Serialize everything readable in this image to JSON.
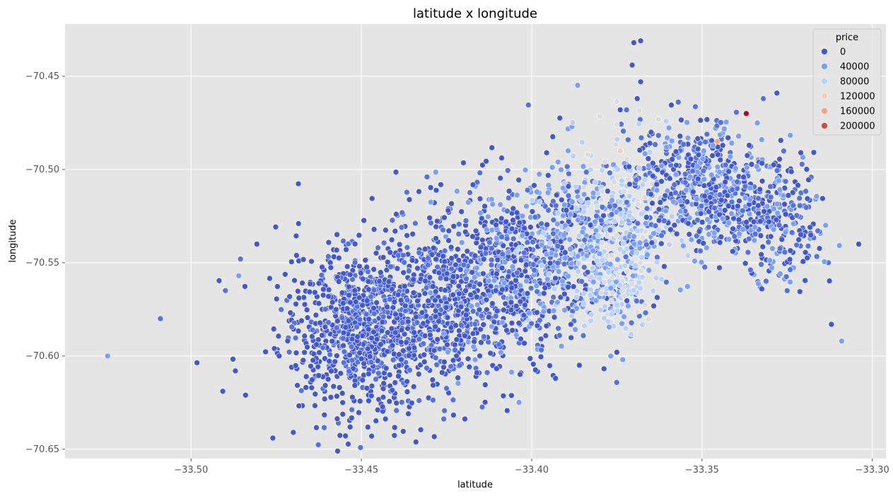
{
  "chart_data": {
    "type": "scatter",
    "title": "latitude x longitude",
    "xlabel": "latitude",
    "ylabel": "longitude",
    "xlim": [
      -33.537,
      -33.296
    ],
    "ylim": [
      -70.655,
      -70.422
    ],
    "x_ticks": [
      -33.5,
      -33.45,
      -33.4,
      -33.35,
      -33.3
    ],
    "x_tick_labels": [
      "−33.50",
      "−33.45",
      "−33.40",
      "−33.35",
      "−33.30"
    ],
    "y_ticks": [
      -70.45,
      -70.5,
      -70.55,
      -70.6,
      -70.65
    ],
    "y_tick_labels": [
      "−70.45",
      "−70.50",
      "−70.55",
      "−70.60",
      "−70.65"
    ],
    "grid": true,
    "legend": {
      "title": "price",
      "placement": "top-right",
      "entries": [
        {
          "label": "0",
          "color": "#4358cb"
        },
        {
          "label": "40000",
          "color": "#7b9ff9"
        },
        {
          "label": "80000",
          "color": "#b9d0f9"
        },
        {
          "label": "120000",
          "color": "#edd1c2"
        },
        {
          "label": "160000",
          "color": "#f6a385"
        },
        {
          "label": "200000",
          "color": "#d24b40"
        }
      ]
    },
    "hue": "price",
    "palette": "coolwarm",
    "clusters": [
      {
        "x": -33.45,
        "y": -70.585,
        "sx": 0.012,
        "sy": 0.022,
        "n": 900,
        "colors": [
          "#4358cb",
          "#4358cb",
          "#4358cb",
          "#4358cb",
          "#5572df"
        ]
      },
      {
        "x": -33.425,
        "y": -70.57,
        "sx": 0.01,
        "sy": 0.024,
        "n": 500,
        "colors": [
          "#4358cb",
          "#4358cb",
          "#4358cb",
          "#5572df"
        ]
      },
      {
        "x": -33.405,
        "y": -70.555,
        "sx": 0.011,
        "sy": 0.025,
        "n": 550,
        "colors": [
          "#4358cb",
          "#4358cb",
          "#4358cb",
          "#5572df",
          "#7b9ff9"
        ]
      },
      {
        "x": -33.385,
        "y": -70.54,
        "sx": 0.009,
        "sy": 0.024,
        "n": 380,
        "colors": [
          "#4358cb",
          "#5572df",
          "#7b9ff9",
          "#7b9ff9",
          "#b9d0f9"
        ]
      },
      {
        "x": -33.37,
        "y": -70.525,
        "sx": 0.007,
        "sy": 0.022,
        "n": 280,
        "colors": [
          "#5572df",
          "#7b9ff9",
          "#b9d0f9",
          "#b9d0f9",
          "#dddcdc"
        ]
      },
      {
        "x": -33.355,
        "y": -70.505,
        "sx": 0.008,
        "sy": 0.016,
        "n": 250,
        "colors": [
          "#4358cb",
          "#4358cb",
          "#5572df",
          "#7b9ff9"
        ]
      },
      {
        "x": -33.34,
        "y": -70.515,
        "sx": 0.009,
        "sy": 0.018,
        "n": 320,
        "colors": [
          "#4358cb",
          "#4358cb",
          "#5572df",
          "#7b9ff9",
          "#7b9ff9"
        ]
      },
      {
        "x": -33.328,
        "y": -70.535,
        "sx": 0.007,
        "sy": 0.014,
        "n": 160,
        "colors": [
          "#4358cb",
          "#4358cb",
          "#5572df",
          "#7b9ff9"
        ]
      },
      {
        "x": -33.375,
        "y": -70.565,
        "sx": 0.004,
        "sy": 0.009,
        "n": 80,
        "colors": [
          "#b9d0f9",
          "#b9d0f9",
          "#dddcdc",
          "#7b9ff9"
        ]
      }
    ],
    "outliers": [
      {
        "x": -33.5245,
        "y": -70.6,
        "color": "#7b9ff9"
      },
      {
        "x": -33.509,
        "y": -70.58,
        "color": "#5572df"
      },
      {
        "x": -33.4855,
        "y": -70.548,
        "color": "#5572df"
      },
      {
        "x": -33.486,
        "y": -70.557,
        "color": "#7b9ff9"
      },
      {
        "x": -33.487,
        "y": -70.608,
        "color": "#4358cb"
      },
      {
        "x": -33.484,
        "y": -70.621,
        "color": "#4358cb"
      },
      {
        "x": -33.476,
        "y": -70.644,
        "color": "#4358cb"
      },
      {
        "x": -33.47,
        "y": -70.641,
        "color": "#4358cb"
      },
      {
        "x": -33.447,
        "y": -70.643,
        "color": "#4358cb"
      },
      {
        "x": -33.368,
        "y": -70.431,
        "color": "#4358cb"
      },
      {
        "x": -33.37,
        "y": -70.432,
        "color": "#4358cb"
      },
      {
        "x": -33.3705,
        "y": -70.444,
        "color": "#4358cb"
      },
      {
        "x": -33.368,
        "y": -70.453,
        "color": "#4358cb"
      },
      {
        "x": -33.369,
        "y": -70.462,
        "color": "#4358cb"
      },
      {
        "x": -33.374,
        "y": -70.468,
        "color": "#4358cb"
      },
      {
        "x": -33.332,
        "y": -70.462,
        "color": "#5572df"
      },
      {
        "x": -33.328,
        "y": -70.459,
        "color": "#4358cb"
      },
      {
        "x": -33.337,
        "y": -70.47,
        "color": "#b40426"
      },
      {
        "x": -33.3455,
        "y": -70.485,
        "color": "#f6a385"
      },
      {
        "x": -33.374,
        "y": -70.49,
        "color": "#edd1c2"
      },
      {
        "x": -33.304,
        "y": -70.54,
        "color": "#4358cb"
      },
      {
        "x": -33.309,
        "y": -70.592,
        "color": "#7b9ff9"
      },
      {
        "x": -33.312,
        "y": -70.583,
        "color": "#4358cb"
      },
      {
        "x": -33.321,
        "y": -70.491,
        "color": "#4358cb"
      },
      {
        "x": -33.375,
        "y": -70.598,
        "color": "#4358cb"
      },
      {
        "x": -33.393,
        "y": -70.612,
        "color": "#4358cb"
      },
      {
        "x": -33.386,
        "y": -70.605,
        "color": "#4358cb"
      }
    ]
  }
}
